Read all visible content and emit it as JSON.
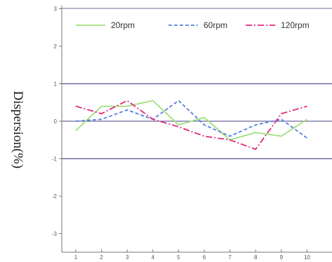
{
  "chart_data": {
    "type": "line",
    "title": "",
    "xlabel": "",
    "ylabel": "Dispersion(%)",
    "x": [
      1,
      2,
      3,
      4,
      5,
      6,
      7,
      8,
      9,
      10
    ],
    "xlim": [
      0,
      11
    ],
    "ylim": [
      -3.5,
      3
    ],
    "x_ticks": [
      "1",
      "2",
      "3",
      "4",
      "5",
      "6",
      "7",
      "8",
      "9",
      "10"
    ],
    "y_ticks": [
      "3",
      "2",
      "1",
      "0",
      "-1",
      "-2",
      "-3"
    ],
    "y_tick_values": [
      3,
      2,
      1,
      0,
      -1,
      -2,
      -3
    ],
    "reference_lines_y": [
      1,
      0,
      -1
    ],
    "grid": false,
    "legend_position": "top",
    "series": [
      {
        "name": "20rpm",
        "color": "#9fe07a",
        "style": "solid",
        "values": [
          -0.25,
          0.4,
          0.4,
          0.55,
          -0.1,
          0.1,
          -0.5,
          -0.3,
          -0.4,
          0.05
        ]
      },
      {
        "name": "60rpm",
        "color": "#5a7fe0",
        "style": "dashed",
        "values": [
          0.0,
          0.05,
          0.3,
          0.05,
          0.55,
          -0.1,
          -0.4,
          -0.1,
          0.05,
          -0.45
        ]
      },
      {
        "name": "120rpm",
        "color": "#e0287e",
        "style": "dashdot",
        "values": [
          0.4,
          0.2,
          0.55,
          0.05,
          -0.15,
          -0.4,
          -0.5,
          -0.75,
          0.2,
          0.4
        ]
      }
    ]
  }
}
